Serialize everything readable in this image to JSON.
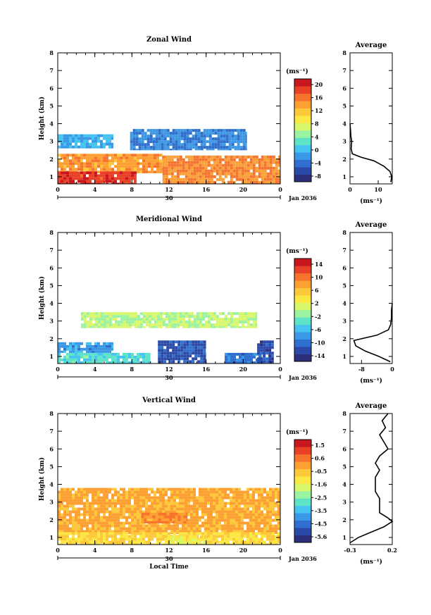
{
  "chart_data": [
    {
      "type": "heatmap",
      "title": "Zonal Wind",
      "ylabel": "Height (km)",
      "x_ticks": [
        "0",
        "4",
        "8",
        "12",
        "16",
        "20",
        "0"
      ],
      "y_ticks": [
        "1",
        "2",
        "3",
        "4",
        "5",
        "6",
        "7",
        "8"
      ],
      "xlim": [
        0,
        24
      ],
      "ylim": [
        0.6,
        8.0
      ],
      "date_day": "30",
      "date_text": "Jan 2036",
      "colorbar": {
        "unit": "(ms⁻¹)",
        "labels": [
          "20",
          "16",
          "12",
          "8",
          "4",
          "0",
          "-4",
          "-8"
        ],
        "range": [
          -10,
          22
        ],
        "colors": [
          "#2c2f7a",
          "#2a49a8",
          "#2f6fd0",
          "#3a98e6",
          "#45c4ef",
          "#5ee3c9",
          "#9af3a1",
          "#d8f86a",
          "#fbe842",
          "#fdc83a",
          "#fca033",
          "#f8742e",
          "#e94128",
          "#c8171f"
        ]
      },
      "blocks": [
        {
          "x0": 0,
          "x1": 11.3,
          "y0": 1.2,
          "y1": 2.3,
          "value": 14
        },
        {
          "x0": 0,
          "x1": 8.5,
          "y0": 0.6,
          "y1": 1.3,
          "value": 19
        },
        {
          "x0": 11.3,
          "x1": 24,
          "y0": 0.6,
          "y1": 2.2,
          "value": 15
        },
        {
          "x0": 0,
          "x1": 6,
          "y0": 2.6,
          "y1": 3.4,
          "value": -1
        },
        {
          "x0": 7.8,
          "x1": 20.4,
          "y0": 2.5,
          "y1": 3.7,
          "value": -3
        }
      ],
      "profile": {
        "title": "Average",
        "xlabel": "(ms⁻¹)",
        "x_ticks": [
          "0",
          "10"
        ],
        "xlim": [
          0,
          15
        ],
        "height": [
          0.7,
          1.0,
          1.3,
          1.6,
          1.9,
          2.1,
          2.3,
          2.6,
          3.0,
          3.3,
          3.6,
          4.0
        ],
        "speed": [
          14.5,
          14.8,
          14.2,
          12.0,
          8.5,
          4.0,
          0.8,
          0.4,
          0.6,
          0.3,
          0.2,
          0.0
        ]
      }
    },
    {
      "type": "heatmap",
      "title": "Meridional Wind",
      "ylabel": "Height (km)",
      "x_ticks": [
        "0",
        "4",
        "8",
        "12",
        "16",
        "20",
        "0"
      ],
      "y_ticks": [
        "1",
        "2",
        "3",
        "4",
        "5",
        "6",
        "7",
        "8"
      ],
      "xlim": [
        0,
        24
      ],
      "ylim": [
        0.6,
        8.0
      ],
      "date_day": "30",
      "date_text": "Jan 2036",
      "colorbar": {
        "unit": "(ms⁻¹)",
        "labels": [
          "14",
          "10",
          "6",
          "2",
          "-2",
          "-6",
          "-10",
          "-14"
        ],
        "range": [
          -16,
          16
        ],
        "colors": [
          "#2c2f7a",
          "#2a49a8",
          "#2f6fd0",
          "#3a98e6",
          "#45c4ef",
          "#5ee3c9",
          "#9af3a1",
          "#d8f86a",
          "#fbe842",
          "#fdc83a",
          "#fca033",
          "#f8742e",
          "#e94128",
          "#c8171f"
        ]
      },
      "blocks": [
        {
          "x0": 0,
          "x1": 10,
          "y0": 0.6,
          "y1": 1.2,
          "value": -4
        },
        {
          "x0": 0,
          "x1": 6,
          "y0": 1.2,
          "y1": 1.8,
          "value": -8
        },
        {
          "x0": 10.8,
          "x1": 16,
          "y0": 0.6,
          "y1": 1.9,
          "value": -12
        },
        {
          "x0": 18,
          "x1": 22,
          "y0": 0.6,
          "y1": 1.2,
          "value": -10
        },
        {
          "x0": 21.5,
          "x1": 23.3,
          "y0": 0.6,
          "y1": 1.9,
          "value": -13
        },
        {
          "x0": 2.5,
          "x1": 21.5,
          "y0": 2.6,
          "y1": 3.5,
          "value": 0
        }
      ],
      "profile": {
        "title": "Average",
        "xlabel": "(ms⁻¹)",
        "x_ticks": [
          "-8",
          "0"
        ],
        "xlim": [
          -11,
          0
        ],
        "height": [
          0.7,
          1.0,
          1.3,
          1.6,
          1.9,
          2.2,
          2.5,
          2.8,
          3.2,
          3.6,
          4.0
        ],
        "speed": [
          -0.5,
          -3.5,
          -7.0,
          -9.5,
          -10.0,
          -4.0,
          -1.0,
          -0.4,
          -0.2,
          -0.2,
          0.0
        ]
      }
    },
    {
      "type": "heatmap",
      "title": "Vertical Wind",
      "xlabel": "Local Time",
      "ylabel": "Height (km)",
      "x_ticks": [
        "0",
        "4",
        "8",
        "12",
        "16",
        "20",
        "0"
      ],
      "y_ticks": [
        "1",
        "2",
        "3",
        "4",
        "5",
        "6",
        "7",
        "8"
      ],
      "xlim": [
        0,
        24
      ],
      "ylim": [
        0.6,
        8.0
      ],
      "date_day": "30",
      "date_text": "Jan 2036",
      "colorbar": {
        "unit": "(ms⁻¹)",
        "labels": [
          "1.5",
          "0.6",
          "-0.5",
          "-1.6",
          "-2.5",
          "-3.5",
          "-4.5",
          "-5.6"
        ],
        "range": [
          -6.0,
          2.0
        ],
        "colors": [
          "#2c2f7a",
          "#2a49a8",
          "#2f6fd0",
          "#3a98e6",
          "#45c4ef",
          "#5ee3c9",
          "#9af3a1",
          "#d8f86a",
          "#fbe842",
          "#fdc83a",
          "#fca033",
          "#f8742e",
          "#e94128",
          "#c8171f"
        ]
      },
      "blocks": [
        {
          "x0": 0,
          "x1": 24,
          "y0": 1.2,
          "y1": 3.8,
          "value": -0.2
        },
        {
          "x0": 0,
          "x1": 24,
          "y0": 0.6,
          "y1": 1.3,
          "value": -0.9
        },
        {
          "x0": 9,
          "x1": 14,
          "y0": 1.8,
          "y1": 2.4,
          "value": 0.3
        },
        {
          "x0": 12,
          "x1": 16,
          "y0": 0.6,
          "y1": 1.1,
          "value": -1.3
        }
      ],
      "profile": {
        "title": "Average",
        "xlabel": "(ms⁻¹)",
        "x_ticks": [
          "-0.3",
          "0.2"
        ],
        "xlim": [
          -0.3,
          0.2
        ],
        "height": [
          0.7,
          1.0,
          1.3,
          1.6,
          1.9,
          2.1,
          2.4,
          2.8,
          3.2,
          3.6,
          4.0,
          4.4,
          4.8,
          5.2,
          5.6,
          6.0,
          6.4,
          6.8,
          7.2,
          7.6,
          8.0
        ],
        "speed": [
          -0.3,
          -0.2,
          -0.05,
          0.1,
          0.2,
          0.15,
          0.05,
          0.05,
          0.05,
          0.0,
          0.0,
          0.0,
          0.05,
          0.0,
          0.05,
          0.15,
          0.1,
          0.05,
          0.12,
          0.08,
          0.15
        ]
      }
    }
  ]
}
